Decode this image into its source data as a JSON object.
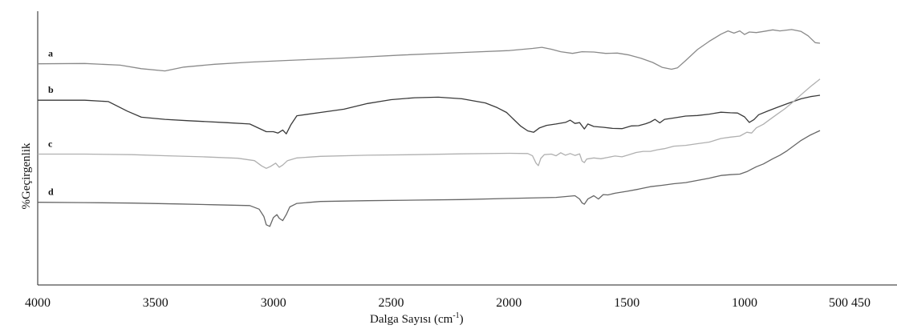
{
  "chart_data": {
    "type": "line",
    "xlabel": "Dalga Sayısı (cm",
    "xlabel_sup": "-1",
    "xlabel_close": ")",
    "ylabel": "%Geçirgenlik",
    "xlim": [
      4000,
      450
    ],
    "x_ticks": [
      4000,
      3500,
      3000,
      2500,
      2000,
      1500,
      1000
    ],
    "x_tick_labels": [
      "4000",
      "3500",
      "3000",
      "2500",
      "2000",
      "1500",
      "1000"
    ],
    "x_end_label": "500 450",
    "ylim": [
      0,
      100
    ],
    "grid": false,
    "series": [
      {
        "name": "a",
        "color": "#8a8a8a",
        "points": [
          [
            4000,
            80.8
          ],
          [
            3800,
            80.9
          ],
          [
            3650,
            80.3
          ],
          [
            3560,
            79
          ],
          [
            3460,
            78.2
          ],
          [
            3380,
            79.6
          ],
          [
            3250,
            80.6
          ],
          [
            3100,
            81.4
          ],
          [
            2950,
            82
          ],
          [
            2700,
            82.9
          ],
          [
            2450,
            84
          ],
          [
            2200,
            84.9
          ],
          [
            2000,
            85.6
          ],
          [
            1900,
            86.4
          ],
          [
            1860,
            86.8
          ],
          [
            1820,
            86.1
          ],
          [
            1780,
            85.2
          ],
          [
            1730,
            84.6
          ],
          [
            1690,
            85.2
          ],
          [
            1640,
            85.1
          ],
          [
            1590,
            84.6
          ],
          [
            1540,
            84.7
          ],
          [
            1490,
            84
          ],
          [
            1440,
            82.8
          ],
          [
            1390,
            81.3
          ],
          [
            1350,
            79.5
          ],
          [
            1310,
            78.8
          ],
          [
            1285,
            79.3
          ],
          [
            1250,
            82
          ],
          [
            1200,
            86
          ],
          [
            1150,
            89
          ],
          [
            1100,
            91.6
          ],
          [
            1070,
            92.8
          ],
          [
            1045,
            92
          ],
          [
            1020,
            92.8
          ],
          [
            1000,
            91.5
          ],
          [
            980,
            92.4
          ],
          [
            950,
            92.2
          ],
          [
            920,
            92.6
          ],
          [
            880,
            93.2
          ],
          [
            850,
            92.8
          ],
          [
            800,
            93.3
          ],
          [
            760,
            92.6
          ],
          [
            730,
            91
          ],
          [
            700,
            88.5
          ],
          [
            680,
            88.3
          ]
        ]
      },
      {
        "name": "b",
        "color": "#3a3a3a",
        "points": [
          [
            4000,
            67.5
          ],
          [
            3800,
            67.5
          ],
          [
            3700,
            67
          ],
          [
            3620,
            63.5
          ],
          [
            3560,
            61.3
          ],
          [
            3460,
            60.5
          ],
          [
            3360,
            60
          ],
          [
            3200,
            59.3
          ],
          [
            3100,
            58.8
          ],
          [
            3060,
            57.2
          ],
          [
            3030,
            56
          ],
          [
            3000,
            56
          ],
          [
            2980,
            55.5
          ],
          [
            2960,
            56.6
          ],
          [
            2945,
            55.2
          ],
          [
            2925,
            58.6
          ],
          [
            2900,
            61.8
          ],
          [
            2800,
            63
          ],
          [
            2700,
            64.2
          ],
          [
            2600,
            66.3
          ],
          [
            2500,
            67.7
          ],
          [
            2400,
            68.4
          ],
          [
            2300,
            68.6
          ],
          [
            2200,
            68
          ],
          [
            2100,
            66.5
          ],
          [
            2050,
            64.8
          ],
          [
            2010,
            63
          ],
          [
            1980,
            60.5
          ],
          [
            1950,
            58
          ],
          [
            1920,
            56.3
          ],
          [
            1895,
            55.8
          ],
          [
            1870,
            57.4
          ],
          [
            1840,
            58.3
          ],
          [
            1800,
            58.8
          ],
          [
            1760,
            59.4
          ],
          [
            1740,
            60.2
          ],
          [
            1720,
            59
          ],
          [
            1700,
            59.3
          ],
          [
            1680,
            57
          ],
          [
            1665,
            58.8
          ],
          [
            1640,
            57.9
          ],
          [
            1600,
            57.6
          ],
          [
            1560,
            57.2
          ],
          [
            1520,
            57.1
          ],
          [
            1480,
            58.1
          ],
          [
            1450,
            58.2
          ],
          [
            1420,
            58.9
          ],
          [
            1400,
            59.5
          ],
          [
            1380,
            60.5
          ],
          [
            1360,
            59.2
          ],
          [
            1340,
            60.5
          ],
          [
            1300,
            61
          ],
          [
            1250,
            61.7
          ],
          [
            1200,
            61.9
          ],
          [
            1150,
            62.4
          ],
          [
            1100,
            63.1
          ],
          [
            1060,
            62.9
          ],
          [
            1030,
            62.8
          ],
          [
            1000,
            61.4
          ],
          [
            980,
            59.4
          ],
          [
            960,
            60.4
          ],
          [
            940,
            62.2
          ],
          [
            900,
            63.6
          ],
          [
            860,
            64.9
          ],
          [
            820,
            66.2
          ],
          [
            790,
            67.1
          ],
          [
            760,
            68
          ],
          [
            720,
            68.8
          ],
          [
            680,
            69.3
          ]
        ]
      },
      {
        "name": "c",
        "color": "#b0b0b0",
        "points": [
          [
            4000,
            47.8
          ],
          [
            3800,
            47.8
          ],
          [
            3600,
            47.6
          ],
          [
            3450,
            47.2
          ],
          [
            3300,
            46.8
          ],
          [
            3150,
            46.3
          ],
          [
            3080,
            45.4
          ],
          [
            3050,
            43.5
          ],
          [
            3030,
            42.6
          ],
          [
            3010,
            43.4
          ],
          [
            2990,
            44.5
          ],
          [
            2975,
            43
          ],
          [
            2960,
            43.8
          ],
          [
            2940,
            45.4
          ],
          [
            2900,
            46.4
          ],
          [
            2800,
            47
          ],
          [
            2600,
            47.4
          ],
          [
            2400,
            47.6
          ],
          [
            2200,
            47.9
          ],
          [
            2000,
            48.1
          ],
          [
            1920,
            48
          ],
          [
            1900,
            47.2
          ],
          [
            1885,
            44.5
          ],
          [
            1875,
            43.6
          ],
          [
            1865,
            46.2
          ],
          [
            1850,
            47.6
          ],
          [
            1820,
            47.8
          ],
          [
            1800,
            47.2
          ],
          [
            1780,
            48.3
          ],
          [
            1760,
            47.4
          ],
          [
            1740,
            48
          ],
          [
            1720,
            47.3
          ],
          [
            1700,
            47.9
          ],
          [
            1690,
            45.3
          ],
          [
            1680,
            44.7
          ],
          [
            1670,
            46
          ],
          [
            1640,
            46.4
          ],
          [
            1610,
            46.1
          ],
          [
            1580,
            46.6
          ],
          [
            1550,
            47.1
          ],
          [
            1520,
            46.8
          ],
          [
            1490,
            47.6
          ],
          [
            1460,
            48.4
          ],
          [
            1430,
            48.8
          ],
          [
            1400,
            48.8
          ],
          [
            1370,
            49.4
          ],
          [
            1340,
            49.8
          ],
          [
            1300,
            50.7
          ],
          [
            1250,
            51
          ],
          [
            1200,
            51.6
          ],
          [
            1150,
            52.2
          ],
          [
            1100,
            53.5
          ],
          [
            1060,
            54
          ],
          [
            1020,
            54.4
          ],
          [
            990,
            55.8
          ],
          [
            970,
            55.5
          ],
          [
            950,
            57.4
          ],
          [
            920,
            58.7
          ],
          [
            900,
            60
          ],
          [
            860,
            62.5
          ],
          [
            830,
            64.3
          ],
          [
            800,
            66.4
          ],
          [
            760,
            69.5
          ],
          [
            720,
            72.5
          ],
          [
            680,
            75.2
          ]
        ]
      },
      {
        "name": "d",
        "color": "#666666",
        "points": [
          [
            4000,
            30.2
          ],
          [
            3800,
            30.1
          ],
          [
            3600,
            29.9
          ],
          [
            3400,
            29.6
          ],
          [
            3250,
            29.3
          ],
          [
            3100,
            29
          ],
          [
            3060,
            27.7
          ],
          [
            3040,
            25
          ],
          [
            3030,
            22
          ],
          [
            3015,
            21.4
          ],
          [
            3000,
            24.6
          ],
          [
            2985,
            25.7
          ],
          [
            2975,
            24.4
          ],
          [
            2960,
            23.5
          ],
          [
            2945,
            25.7
          ],
          [
            2930,
            28.5
          ],
          [
            2900,
            29.8
          ],
          [
            2800,
            30.5
          ],
          [
            2600,
            30.8
          ],
          [
            2400,
            31
          ],
          [
            2200,
            31.2
          ],
          [
            2000,
            31.6
          ],
          [
            1800,
            32
          ],
          [
            1720,
            32.6
          ],
          [
            1700,
            31.4
          ],
          [
            1690,
            30
          ],
          [
            1680,
            29.5
          ],
          [
            1665,
            31.4
          ],
          [
            1640,
            32.6
          ],
          [
            1620,
            31.4
          ],
          [
            1600,
            33
          ],
          [
            1580,
            32.9
          ],
          [
            1550,
            33.5
          ],
          [
            1500,
            34.2
          ],
          [
            1450,
            35
          ],
          [
            1400,
            35.9
          ],
          [
            1350,
            36.4
          ],
          [
            1300,
            37
          ],
          [
            1250,
            37.4
          ],
          [
            1200,
            38.2
          ],
          [
            1150,
            39
          ],
          [
            1100,
            40
          ],
          [
            1060,
            40.3
          ],
          [
            1020,
            40.5
          ],
          [
            990,
            41.4
          ],
          [
            970,
            42.3
          ],
          [
            950,
            43.2
          ],
          [
            920,
            44.2
          ],
          [
            880,
            46.1
          ],
          [
            850,
            47.4
          ],
          [
            820,
            49
          ],
          [
            790,
            50.9
          ],
          [
            760,
            52.8
          ],
          [
            720,
            54.8
          ],
          [
            680,
            56.4
          ]
        ]
      }
    ]
  }
}
